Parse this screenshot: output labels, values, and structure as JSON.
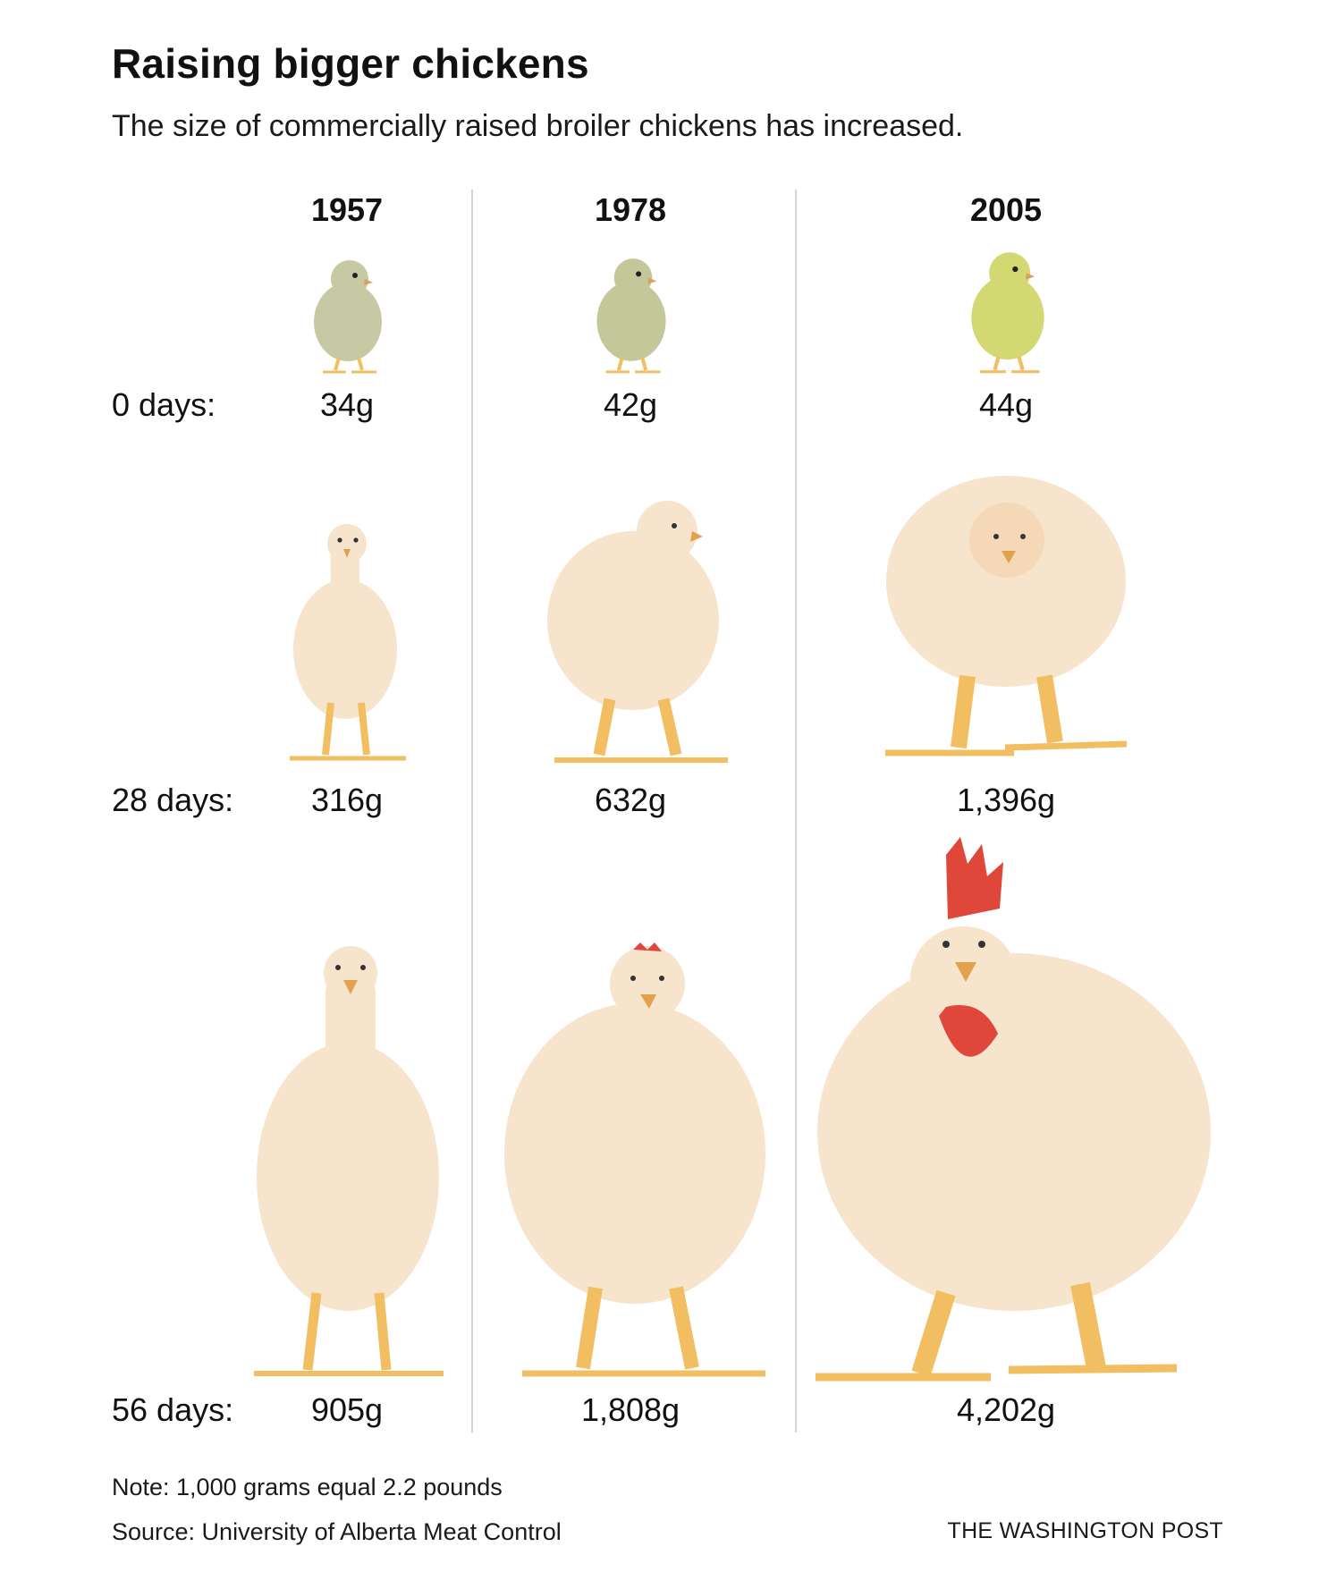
{
  "title": "Raising bigger chickens",
  "subtitle": "The size of commercially raised broiler chickens has increased.",
  "note": "Note: 1,000 grams equal 2.2 pounds",
  "source": "Source: University of Alberta Meat Control",
  "credit": "THE WASHINGTON POST",
  "colors": {
    "chick_1957": "#c6c9a4",
    "chick_1978": "#c3c79a",
    "chick_2005": "#d3d872",
    "feather": "#f7e4cc",
    "leg": "#f1be62",
    "comb": "#e0473b"
  },
  "chart_data": {
    "type": "table",
    "columns": [
      "1957",
      "1978",
      "2005"
    ],
    "rows": [
      {
        "label": "0 days:",
        "age_days": 0,
        "weights_g": [
          34,
          42,
          44
        ],
        "weights_text": [
          "34g",
          "42g",
          "44g"
        ]
      },
      {
        "label": "28 days:",
        "age_days": 28,
        "weights_g": [
          316,
          632,
          1396
        ],
        "weights_text": [
          "316g",
          "632g",
          "1,396g"
        ]
      },
      {
        "label": "56 days:",
        "age_days": 56,
        "weights_g": [
          905,
          1808,
          4202
        ],
        "weights_text": [
          "905g",
          "1,808g",
          "4,202g"
        ]
      }
    ]
  }
}
